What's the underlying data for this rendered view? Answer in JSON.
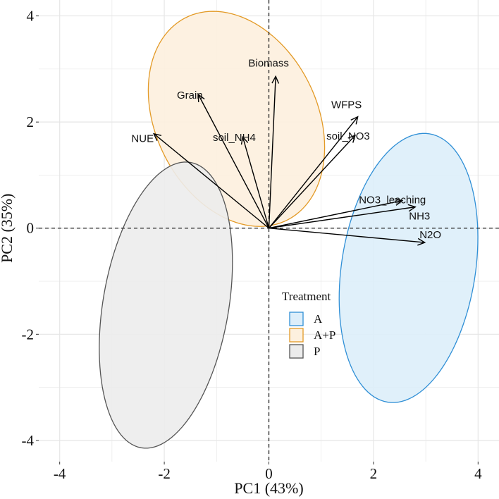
{
  "chart_data": {
    "type": "scatter",
    "subtype": "pca-biplot",
    "title": "",
    "xlabel": "PC1 (43%)",
    "ylabel": "PC2 (35%)",
    "xlim": [
      -4.4,
      4.4
    ],
    "ylim": [
      -4.4,
      4.3
    ],
    "xticks": [
      -4,
      -2,
      0,
      2,
      4
    ],
    "yticks": [
      -4,
      -2,
      0,
      2,
      4
    ],
    "xtick_labels": [
      "-4",
      "-2",
      "0",
      "2",
      "4"
    ],
    "ytick_labels": [
      "-4",
      "-2",
      "0",
      "2",
      "4"
    ],
    "grid": true,
    "reference_lines": {
      "x": 0,
      "y": 0,
      "style": "dashed"
    },
    "loadings": [
      {
        "name": "Biomass",
        "x": 0.13,
        "y": 2.86
      },
      {
        "name": "Grain",
        "x": -1.35,
        "y": 2.52
      },
      {
        "name": "soil_NH4",
        "x": -0.5,
        "y": 1.72
      },
      {
        "name": "NUE",
        "x": -2.2,
        "y": 1.78
      },
      {
        "name": "WFPS",
        "x": 1.7,
        "y": 2.1
      },
      {
        "name": "soil_NO3",
        "x": 1.65,
        "y": 1.75
      },
      {
        "name": "NO3_leaching",
        "x": 2.55,
        "y": 0.52
      },
      {
        "name": "NH3",
        "x": 2.8,
        "y": 0.4
      },
      {
        "name": "N2O",
        "x": 2.98,
        "y": -0.27
      }
    ],
    "ellipses": [
      {
        "group": "A",
        "center": [
          2.67,
          -0.75
        ],
        "major": 2.56,
        "minor": 1.28,
        "angle": 81,
        "fill": "#ddeefa",
        "stroke": "#2f8fd6"
      },
      {
        "group": "A+P",
        "center": [
          -0.62,
          2.06
        ],
        "major": 2.14,
        "minor": 1.54,
        "angle": -62.5,
        "fill": "#fdf0de",
        "stroke": "#e39a26"
      },
      {
        "group": "P",
        "center": [
          -1.97,
          -1.45
        ],
        "major": 2.73,
        "minor": 1.2,
        "angle": 80,
        "fill": "#ececec",
        "stroke": "#555555"
      }
    ],
    "legend": {
      "title": "Treatment",
      "position": "bottom-center",
      "entries": [
        {
          "label": "A",
          "fill": "#ddeefa",
          "stroke": "#2f8fd6"
        },
        {
          "label": "A+P",
          "fill": "#fdf0de",
          "stroke": "#e39a26"
        },
        {
          "label": "P",
          "fill": "#ececec",
          "stroke": "#555555"
        }
      ]
    }
  }
}
